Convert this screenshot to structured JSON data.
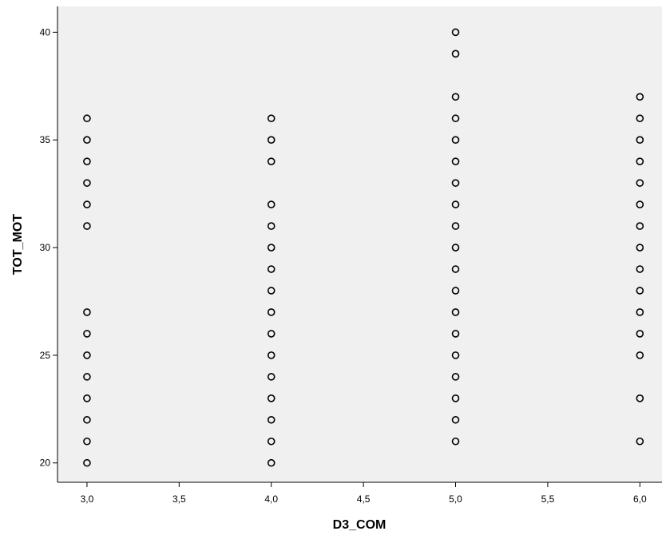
{
  "chart_data": {
    "type": "scatter",
    "xlabel": "D3_COM",
    "ylabel": "TOT_MOT",
    "xlim": [
      2.84,
      6.12
    ],
    "ylim": [
      19.1,
      41.2
    ],
    "x_ticks": [
      3.0,
      3.5,
      4.0,
      4.5,
      5.0,
      5.5,
      6.0
    ],
    "x_tick_labels": [
      "3,0",
      "3,5",
      "4,0",
      "4,5",
      "5,0",
      "5,5",
      "6,0"
    ],
    "y_ticks": [
      20,
      25,
      30,
      35,
      40
    ],
    "y_tick_labels": [
      "20",
      "25",
      "30",
      "35",
      "40"
    ],
    "grid": false,
    "colors": {
      "plot_background": "#f0f0f0",
      "marker_edge": "#000000",
      "axis": "#000000"
    },
    "points": [
      {
        "x": 3.0,
        "y": 36
      },
      {
        "x": 3.0,
        "y": 35
      },
      {
        "x": 3.0,
        "y": 34
      },
      {
        "x": 3.0,
        "y": 33
      },
      {
        "x": 3.0,
        "y": 32
      },
      {
        "x": 3.0,
        "y": 31
      },
      {
        "x": 3.0,
        "y": 27
      },
      {
        "x": 3.0,
        "y": 26
      },
      {
        "x": 3.0,
        "y": 25
      },
      {
        "x": 3.0,
        "y": 24
      },
      {
        "x": 3.0,
        "y": 23
      },
      {
        "x": 3.0,
        "y": 22
      },
      {
        "x": 3.0,
        "y": 21
      },
      {
        "x": 3.0,
        "y": 20
      },
      {
        "x": 4.0,
        "y": 36
      },
      {
        "x": 4.0,
        "y": 35
      },
      {
        "x": 4.0,
        "y": 34
      },
      {
        "x": 4.0,
        "y": 32
      },
      {
        "x": 4.0,
        "y": 31
      },
      {
        "x": 4.0,
        "y": 30
      },
      {
        "x": 4.0,
        "y": 29
      },
      {
        "x": 4.0,
        "y": 28
      },
      {
        "x": 4.0,
        "y": 27
      },
      {
        "x": 4.0,
        "y": 26
      },
      {
        "x": 4.0,
        "y": 25
      },
      {
        "x": 4.0,
        "y": 24
      },
      {
        "x": 4.0,
        "y": 23
      },
      {
        "x": 4.0,
        "y": 22
      },
      {
        "x": 4.0,
        "y": 21
      },
      {
        "x": 4.0,
        "y": 20
      },
      {
        "x": 5.0,
        "y": 40
      },
      {
        "x": 5.0,
        "y": 39
      },
      {
        "x": 5.0,
        "y": 37
      },
      {
        "x": 5.0,
        "y": 36
      },
      {
        "x": 5.0,
        "y": 35
      },
      {
        "x": 5.0,
        "y": 34
      },
      {
        "x": 5.0,
        "y": 33
      },
      {
        "x": 5.0,
        "y": 32
      },
      {
        "x": 5.0,
        "y": 31
      },
      {
        "x": 5.0,
        "y": 30
      },
      {
        "x": 5.0,
        "y": 29
      },
      {
        "x": 5.0,
        "y": 28
      },
      {
        "x": 5.0,
        "y": 27
      },
      {
        "x": 5.0,
        "y": 26
      },
      {
        "x": 5.0,
        "y": 25
      },
      {
        "x": 5.0,
        "y": 24
      },
      {
        "x": 5.0,
        "y": 23
      },
      {
        "x": 5.0,
        "y": 22
      },
      {
        "x": 5.0,
        "y": 21
      },
      {
        "x": 6.0,
        "y": 37
      },
      {
        "x": 6.0,
        "y": 36
      },
      {
        "x": 6.0,
        "y": 35
      },
      {
        "x": 6.0,
        "y": 34
      },
      {
        "x": 6.0,
        "y": 33
      },
      {
        "x": 6.0,
        "y": 32
      },
      {
        "x": 6.0,
        "y": 31
      },
      {
        "x": 6.0,
        "y": 30
      },
      {
        "x": 6.0,
        "y": 29
      },
      {
        "x": 6.0,
        "y": 28
      },
      {
        "x": 6.0,
        "y": 27
      },
      {
        "x": 6.0,
        "y": 26
      },
      {
        "x": 6.0,
        "y": 25
      },
      {
        "x": 6.0,
        "y": 23
      },
      {
        "x": 6.0,
        "y": 21
      }
    ]
  }
}
